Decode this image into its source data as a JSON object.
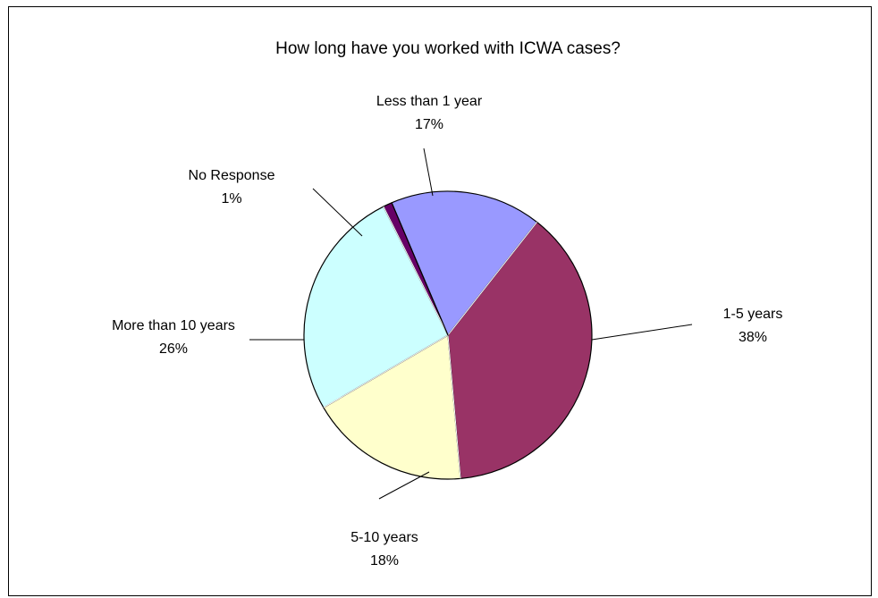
{
  "chart_data": {
    "type": "pie",
    "title": "How long have you worked with ICWA cases?",
    "slices": [
      {
        "label": "Less than 1 year",
        "value": 17,
        "pct_label": "17%",
        "color": "#9999ff"
      },
      {
        "label": "1-5 years",
        "value": 38,
        "pct_label": "38%",
        "color": "#993366"
      },
      {
        "label": "5-10 years",
        "value": 18,
        "pct_label": "18%",
        "color": "#ffffcc"
      },
      {
        "label": "More than 10 years",
        "value": 26,
        "pct_label": "26%",
        "color": "#ccffff"
      },
      {
        "label": "No Response",
        "value": 1,
        "pct_label": "1%",
        "color": "#660066"
      }
    ],
    "legend": "none"
  }
}
